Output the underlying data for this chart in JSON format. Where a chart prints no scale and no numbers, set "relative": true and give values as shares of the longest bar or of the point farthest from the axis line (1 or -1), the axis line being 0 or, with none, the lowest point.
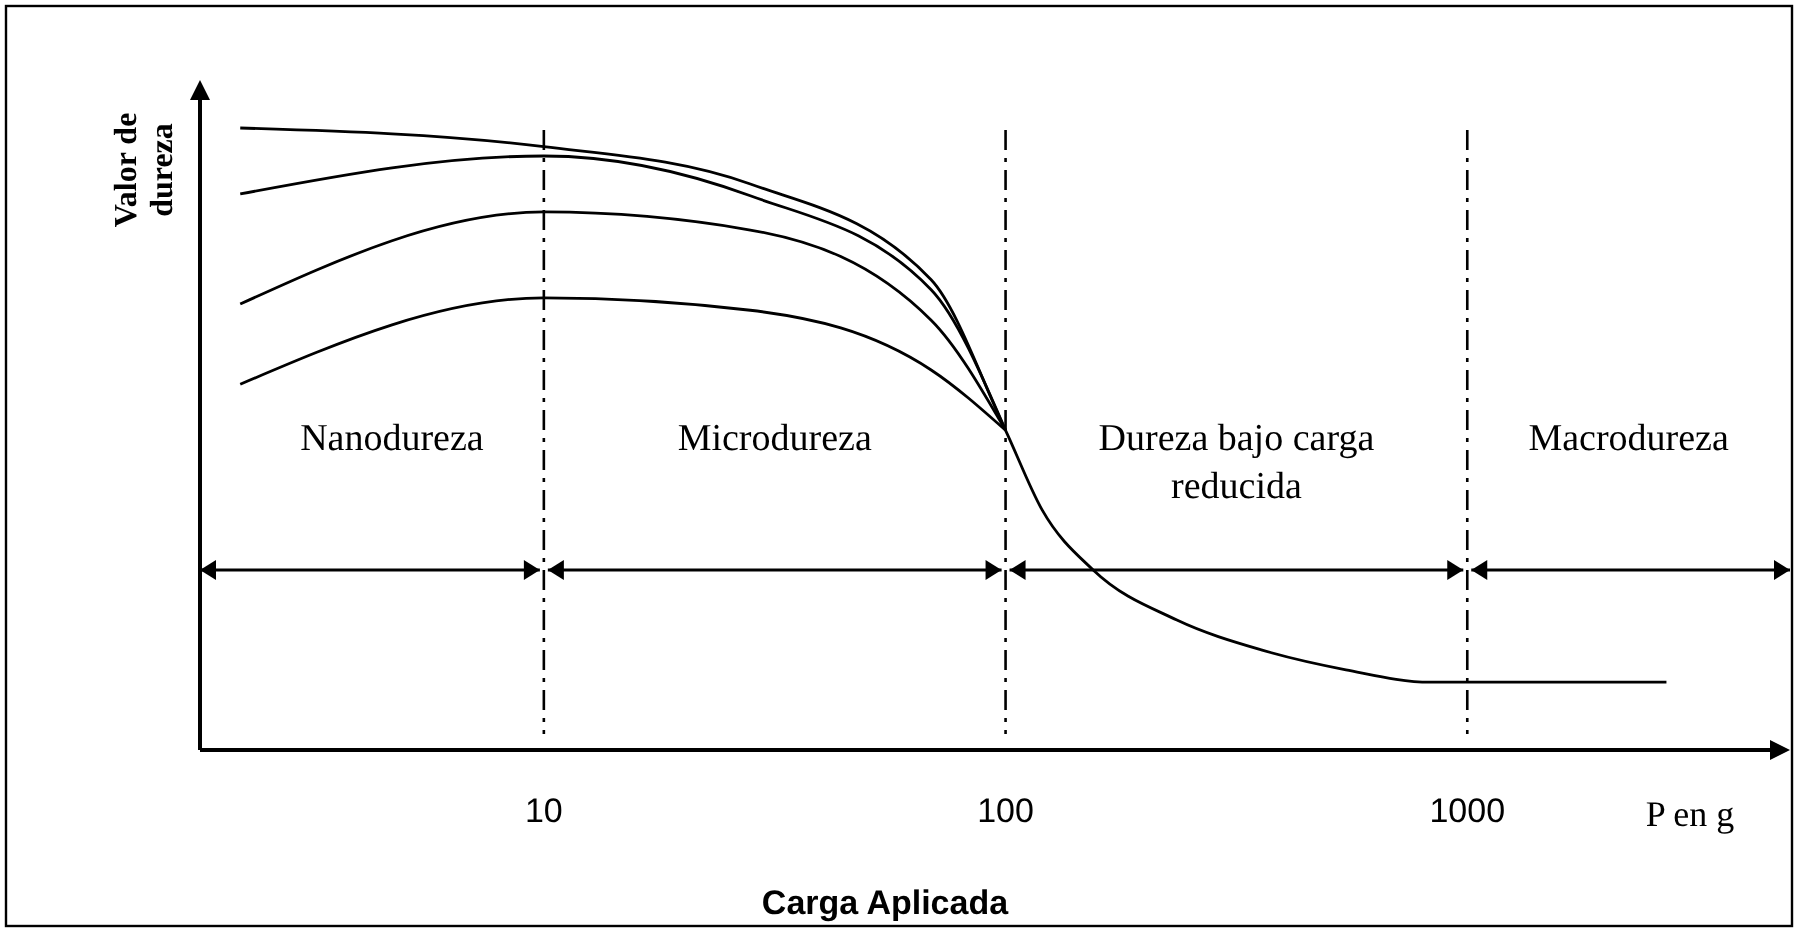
{
  "chart_data": {
    "type": "line",
    "relative": true,
    "log": "x",
    "xlabel": "Carga Aplicada",
    "ylabel": "Valor de dureza",
    "xlim": [
      1.8,
      5000
    ],
    "xticks": [
      10,
      100,
      1000
    ],
    "series": [
      {
        "color": "#000000",
        "x": [
          2.2,
          10,
          28,
          69,
          100,
          120,
          155,
          235,
          358,
          546,
          830,
          2700
        ],
        "values": [
          1,
          0.97,
          0.91,
          0.756,
          0.514,
          0.386,
          0.289,
          0.209,
          0.161,
          0.129,
          0.109,
          0.109
        ]
      },
      {
        "color": "#000000",
        "x": [
          2.2,
          10,
          28,
          69,
          100
        ],
        "values": [
          0.894,
          0.955,
          0.891,
          0.74,
          0.514
        ]
      },
      {
        "color": "#000000",
        "x": [
          2.2,
          10,
          28,
          69,
          100
        ],
        "values": [
          0.717,
          0.865,
          0.836,
          0.691,
          0.514
        ]
      },
      {
        "color": "#000000",
        "x": [
          2.2,
          10,
          28,
          69,
          100
        ],
        "values": [
          0.588,
          0.727,
          0.707,
          0.611,
          0.514
        ]
      }
    ],
    "ref_lines": [
      {
        "axis": "x",
        "value": 10,
        "color": "#000000",
        "line_style": "dashed"
      },
      {
        "axis": "x",
        "value": 100,
        "color": "#000000",
        "line_style": "dashed"
      },
      {
        "axis": "x",
        "value": 1000,
        "color": "#000000",
        "line_style": "dashed"
      }
    ],
    "annotations": [
      "Nanodureza",
      "Microdureza",
      "Dureza bajo carga reducida",
      "Macrodureza",
      "P en g"
    ]
  }
}
